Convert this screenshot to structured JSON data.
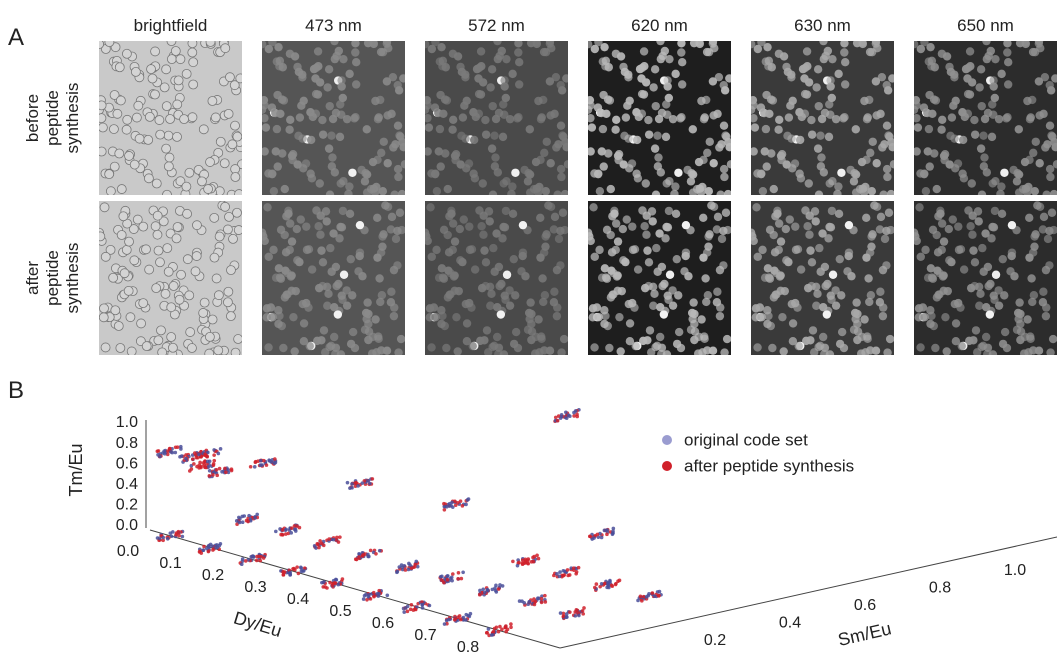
{
  "panel_a": {
    "label": "A",
    "columns": [
      "brightfield",
      "473 nm",
      "572 nm",
      "620 nm",
      "630 nm",
      "650 nm"
    ],
    "rows": [
      [
        "before",
        "peptide",
        "synthesis"
      ],
      [
        "after",
        "peptide",
        "synthesis"
      ]
    ]
  },
  "panel_b": {
    "label": "B",
    "z_axis": {
      "label": "Tm/Eu",
      "ticks": [
        "0.0",
        "0.2",
        "0.4",
        "0.6",
        "0.8",
        "1.0"
      ]
    },
    "x_axis": {
      "label": "Dy/Eu",
      "ticks": [
        "0.0",
        "0.1",
        "0.2",
        "0.3",
        "0.4",
        "0.5",
        "0.6",
        "0.7",
        "0.8"
      ]
    },
    "y_axis": {
      "label": "Sm/Eu",
      "ticks": [
        "0.2",
        "0.4",
        "0.6",
        "0.8",
        "1.0"
      ]
    },
    "legend": [
      {
        "name": "original code set",
        "color": "#9a9cd0"
      },
      {
        "name": "after peptide synthesis",
        "color": "#d0202a"
      }
    ]
  }
}
